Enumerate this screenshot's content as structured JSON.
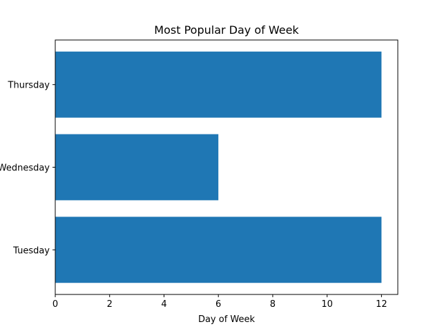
{
  "chart_data": {
    "type": "bar",
    "orientation": "horizontal",
    "title": "Most Popular Day of Week",
    "xlabel": "Day of Week",
    "ylabel": "",
    "categories": [
      "Tuesday",
      "Wednesday",
      "Thursday"
    ],
    "values": [
      12,
      6,
      12
    ],
    "xlim": [
      0,
      12.6
    ],
    "xticks": [
      0,
      2,
      4,
      6,
      8,
      10,
      12
    ],
    "grid": false,
    "legend": "none",
    "bar_color": "#1f77b4"
  }
}
